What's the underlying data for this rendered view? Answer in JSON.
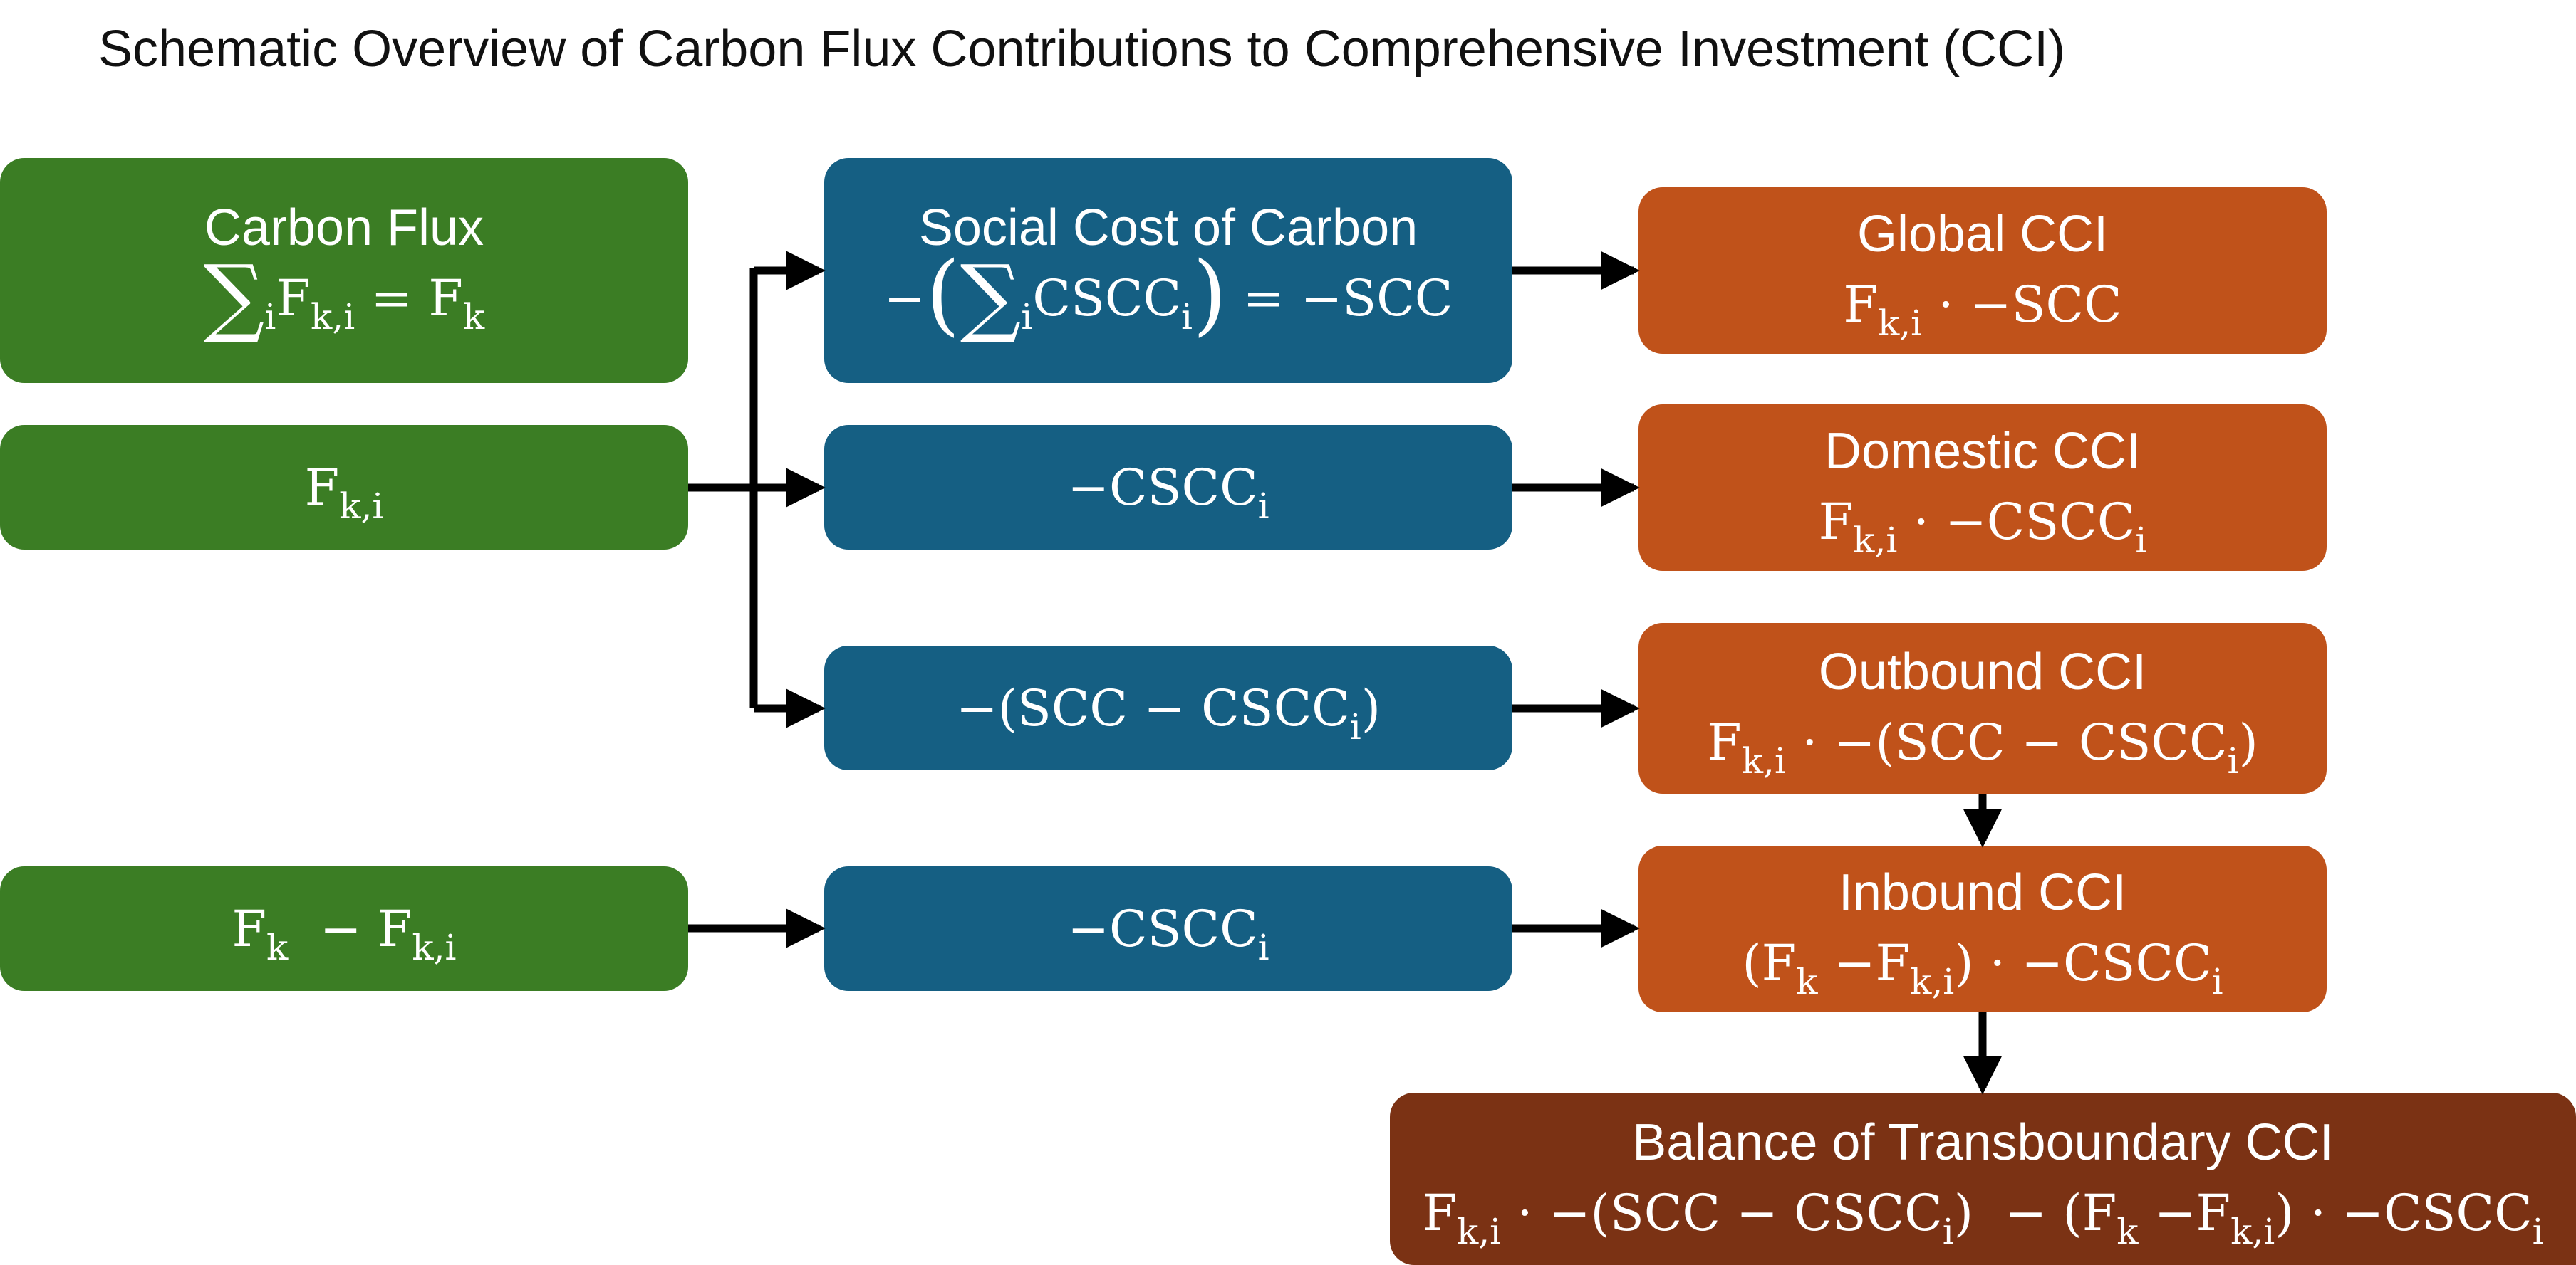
{
  "title": "Schematic Overview of Carbon Flux Contributions to Comprehensive Investment (CCI)",
  "colors": {
    "green": "#3b7d24",
    "blue": "#155f83",
    "orange": "#c0521a",
    "brown": "#7b3214",
    "arrow": "#000000"
  },
  "green_boxes": {
    "carbon_flux": {
      "heading": "Carbon Flux",
      "sum_symbol": "∑",
      "sum_index": "i",
      "lhs": "F",
      "lhs_sub": "k,i",
      "equals": " = F",
      "rhs_sub": "k"
    },
    "flux_ki": {
      "symbol": "F",
      "sub": "k,i"
    },
    "flux_diff": {
      "a": "F",
      "a_sub": "k",
      "minus": "  − F",
      "b_sub": "k,i"
    }
  },
  "blue_boxes": {
    "scc": {
      "heading": "Social Cost of Carbon",
      "prefix": "−",
      "open_paren": "(",
      "sum_symbol": "∑",
      "sum_index": "i",
      "term": "CSCC",
      "term_sub": "i",
      "close_paren": ")",
      "result": " = −SCC"
    },
    "cscc_domestic": {
      "term": "−CSCC",
      "sub": "i"
    },
    "scc_minus_cscc": {
      "term": "−(SCC − CSCC",
      "sub": "i",
      "close": ")"
    },
    "cscc_inbound": {
      "term": "−CSCC",
      "sub": "i"
    }
  },
  "orange_boxes": {
    "global": {
      "heading": "Global CCI",
      "f": "F",
      "f_sub": "k,i",
      "rest": " · −SCC"
    },
    "domestic": {
      "heading": "Domestic CCI",
      "f": "F",
      "f_sub": "k,i",
      "rest": " · −CSCC",
      "rest_sub": "i"
    },
    "outbound": {
      "heading": "Outbound CCI",
      "f": "F",
      "f_sub": "k,i",
      "rest": " · −(SCC − CSCC",
      "rest_sub": "i",
      "close": ")"
    },
    "inbound": {
      "heading": "Inbound CCI",
      "open": "(F",
      "a_sub": "k",
      "minus": " −F",
      "b_sub": "k,i",
      "rest": ") · −CSCC",
      "rest_sub": "i"
    }
  },
  "balance_box": {
    "heading": "Balance of Transboundary CCI",
    "f": "F",
    "f_sub": "k,i",
    "part1": " · −(SCC − CSCC",
    "part1_sub": "i",
    "part2": ")  − (F",
    "part2_sub": "k",
    "part3": " −F",
    "part3_sub": "k,i",
    "part4": ") · −CSCC",
    "part4_sub": "i"
  }
}
